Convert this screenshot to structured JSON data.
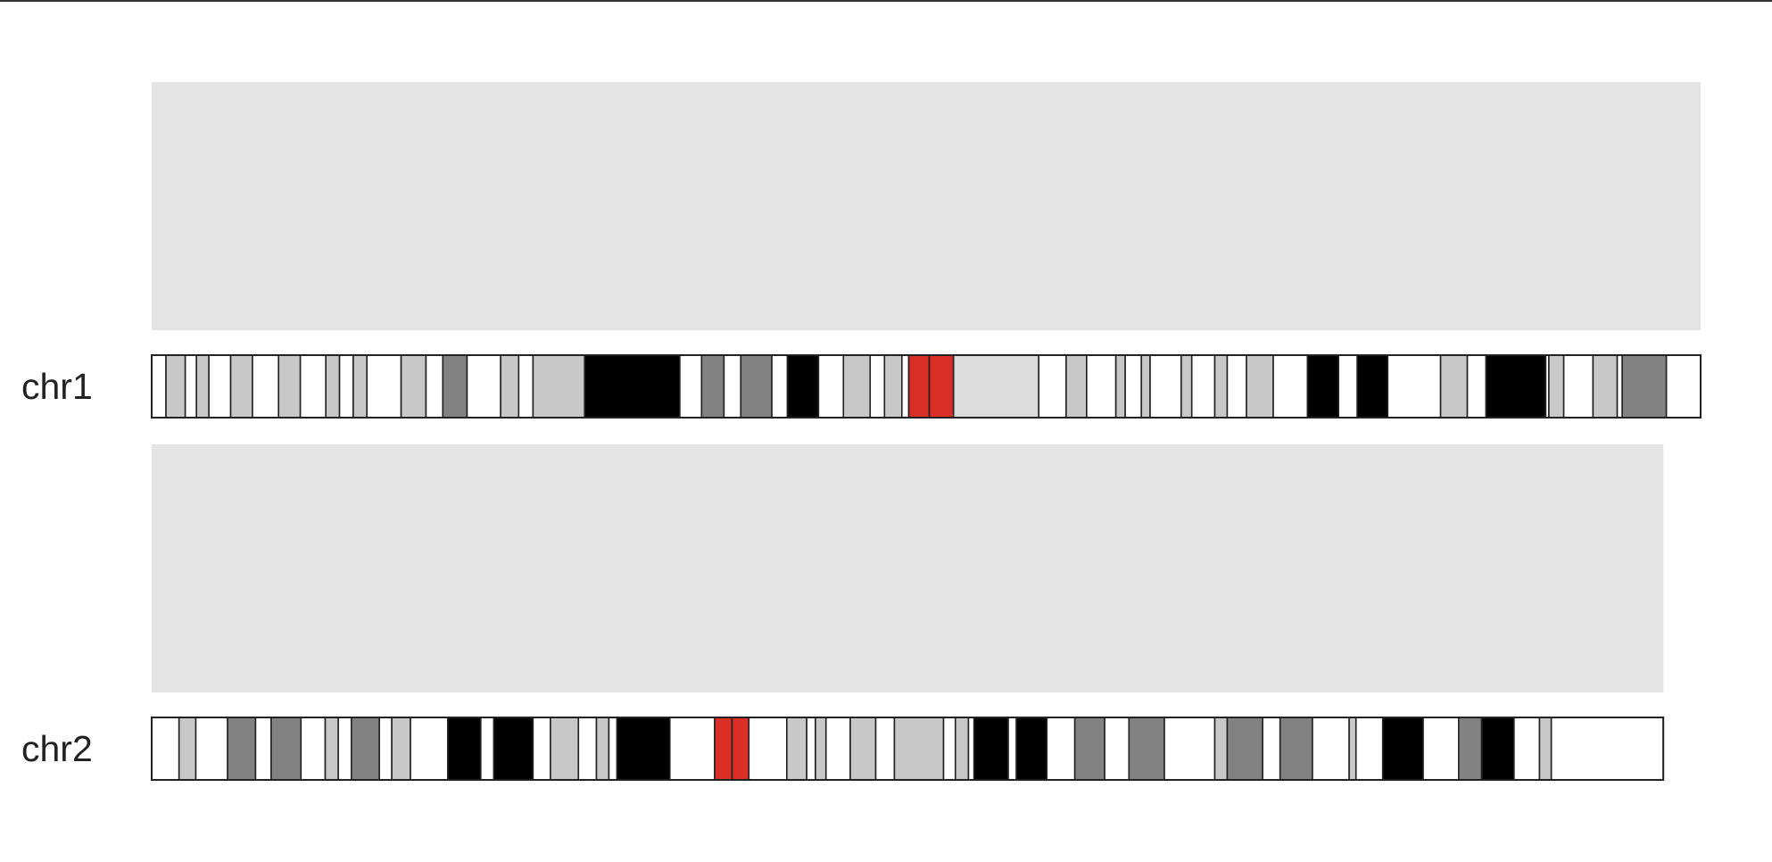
{
  "colors": {
    "panel": "#e4e4e4",
    "outline": "#222222",
    "gneg": "#ffffff",
    "gpos25": "#c8c8c8",
    "gpos50": "#c8c8c8",
    "gpos75": "#828282",
    "gpos100": "#000000",
    "acen": "#d92f27",
    "gvar": "#dcdcdc"
  },
  "chart_data": {
    "type": "ideogram",
    "chromosomes": [
      {
        "name": "chr1",
        "length": 249.0,
        "bands": [
          {
            "start": 0.0,
            "end": 2.3,
            "stain": "gneg"
          },
          {
            "start": 2.3,
            "end": 5.4,
            "stain": "gpos25"
          },
          {
            "start": 5.4,
            "end": 7.2,
            "stain": "gneg"
          },
          {
            "start": 7.2,
            "end": 9.2,
            "stain": "gpos25"
          },
          {
            "start": 9.2,
            "end": 12.7,
            "stain": "gneg"
          },
          {
            "start": 12.7,
            "end": 16.2,
            "stain": "gpos50"
          },
          {
            "start": 16.2,
            "end": 20.4,
            "stain": "gneg"
          },
          {
            "start": 20.4,
            "end": 23.9,
            "stain": "gpos25"
          },
          {
            "start": 23.9,
            "end": 28.0,
            "stain": "gneg"
          },
          {
            "start": 28.0,
            "end": 30.2,
            "stain": "gpos25"
          },
          {
            "start": 30.2,
            "end": 32.4,
            "stain": "gneg"
          },
          {
            "start": 32.4,
            "end": 34.6,
            "stain": "gpos25"
          },
          {
            "start": 34.6,
            "end": 40.1,
            "stain": "gneg"
          },
          {
            "start": 40.1,
            "end": 44.1,
            "stain": "gpos25"
          },
          {
            "start": 44.1,
            "end": 46.8,
            "stain": "gneg"
          },
          {
            "start": 46.8,
            "end": 50.7,
            "stain": "gpos75"
          },
          {
            "start": 50.7,
            "end": 56.1,
            "stain": "gneg"
          },
          {
            "start": 56.1,
            "end": 59.0,
            "stain": "gpos50"
          },
          {
            "start": 59.0,
            "end": 61.3,
            "stain": "gneg"
          },
          {
            "start": 61.3,
            "end": 69.6,
            "stain": "gpos50"
          },
          {
            "start": 69.6,
            "end": 84.9,
            "stain": "gpos100"
          },
          {
            "start": 84.9,
            "end": 88.4,
            "stain": "gneg"
          },
          {
            "start": 88.4,
            "end": 92.0,
            "stain": "gpos75"
          },
          {
            "start": 92.0,
            "end": 94.7,
            "stain": "gneg"
          },
          {
            "start": 94.7,
            "end": 99.7,
            "stain": "gpos75"
          },
          {
            "start": 99.7,
            "end": 102.2,
            "stain": "gneg"
          },
          {
            "start": 102.2,
            "end": 107.2,
            "stain": "gpos100"
          },
          {
            "start": 107.2,
            "end": 111.2,
            "stain": "gneg"
          },
          {
            "start": 111.2,
            "end": 115.5,
            "stain": "gpos50"
          },
          {
            "start": 115.5,
            "end": 117.8,
            "stain": "gneg"
          },
          {
            "start": 117.8,
            "end": 120.6,
            "stain": "gpos50"
          },
          {
            "start": 120.6,
            "end": 121.7,
            "stain": "gneg"
          },
          {
            "start": 121.7,
            "end": 125.0,
            "stain": "acen"
          },
          {
            "start": 125.0,
            "end": 128.9,
            "stain": "acen"
          },
          {
            "start": 128.9,
            "end": 142.6,
            "stain": "gvar"
          },
          {
            "start": 142.6,
            "end": 147.0,
            "stain": "gneg"
          },
          {
            "start": 147.0,
            "end": 150.3,
            "stain": "gpos50"
          },
          {
            "start": 150.3,
            "end": 155.0,
            "stain": "gneg"
          },
          {
            "start": 155.0,
            "end": 156.5,
            "stain": "gpos50"
          },
          {
            "start": 156.5,
            "end": 159.1,
            "stain": "gneg"
          },
          {
            "start": 159.1,
            "end": 160.5,
            "stain": "gpos50"
          },
          {
            "start": 160.5,
            "end": 165.5,
            "stain": "gneg"
          },
          {
            "start": 165.5,
            "end": 167.2,
            "stain": "gpos50"
          },
          {
            "start": 167.2,
            "end": 170.9,
            "stain": "gneg"
          },
          {
            "start": 170.9,
            "end": 172.9,
            "stain": "gpos50"
          },
          {
            "start": 172.9,
            "end": 176.0,
            "stain": "gneg"
          },
          {
            "start": 176.0,
            "end": 180.3,
            "stain": "gpos50"
          },
          {
            "start": 180.3,
            "end": 185.8,
            "stain": "gneg"
          },
          {
            "start": 185.8,
            "end": 190.8,
            "stain": "gpos100"
          },
          {
            "start": 190.8,
            "end": 193.8,
            "stain": "gneg"
          },
          {
            "start": 193.8,
            "end": 198.7,
            "stain": "gpos100"
          },
          {
            "start": 198.7,
            "end": 207.2,
            "stain": "gneg"
          },
          {
            "start": 207.2,
            "end": 211.5,
            "stain": "gpos25"
          },
          {
            "start": 211.5,
            "end": 214.5,
            "stain": "gneg"
          },
          {
            "start": 214.5,
            "end": 224.1,
            "stain": "gpos100"
          },
          {
            "start": 224.1,
            "end": 224.6,
            "stain": "gneg"
          },
          {
            "start": 224.6,
            "end": 227.0,
            "stain": "gpos50"
          },
          {
            "start": 227.0,
            "end": 231.7,
            "stain": "gneg"
          },
          {
            "start": 231.7,
            "end": 235.6,
            "stain": "gpos25"
          },
          {
            "start": 235.6,
            "end": 236.4,
            "stain": "gneg"
          },
          {
            "start": 236.4,
            "end": 243.5,
            "stain": "gpos75"
          },
          {
            "start": 243.5,
            "end": 249.0,
            "stain": "gneg"
          }
        ]
      },
      {
        "name": "chr2",
        "length": 243.0,
        "bands": [
          {
            "start": 0.0,
            "end": 4.4,
            "stain": "gneg"
          },
          {
            "start": 4.4,
            "end": 7.1,
            "stain": "gpos50"
          },
          {
            "start": 7.1,
            "end": 12.2,
            "stain": "gneg"
          },
          {
            "start": 12.2,
            "end": 16.7,
            "stain": "gpos75"
          },
          {
            "start": 16.7,
            "end": 19.2,
            "stain": "gneg"
          },
          {
            "start": 19.2,
            "end": 24.0,
            "stain": "gpos75"
          },
          {
            "start": 24.0,
            "end": 27.9,
            "stain": "gneg"
          },
          {
            "start": 27.9,
            "end": 30.0,
            "stain": "gpos25"
          },
          {
            "start": 30.0,
            "end": 32.1,
            "stain": "gneg"
          },
          {
            "start": 32.1,
            "end": 36.6,
            "stain": "gpos75"
          },
          {
            "start": 36.6,
            "end": 38.6,
            "stain": "gneg"
          },
          {
            "start": 38.6,
            "end": 41.6,
            "stain": "gpos50"
          },
          {
            "start": 41.6,
            "end": 47.6,
            "stain": "gneg"
          },
          {
            "start": 47.6,
            "end": 52.9,
            "stain": "gpos100"
          },
          {
            "start": 52.9,
            "end": 55.0,
            "stain": "gneg"
          },
          {
            "start": 55.0,
            "end": 61.3,
            "stain": "gpos100"
          },
          {
            "start": 61.3,
            "end": 64.1,
            "stain": "gneg"
          },
          {
            "start": 64.1,
            "end": 68.6,
            "stain": "gpos50"
          },
          {
            "start": 68.6,
            "end": 71.5,
            "stain": "gneg"
          },
          {
            "start": 71.5,
            "end": 73.5,
            "stain": "gpos25"
          },
          {
            "start": 73.5,
            "end": 74.8,
            "stain": "gneg"
          },
          {
            "start": 74.8,
            "end": 83.3,
            "stain": "gpos100"
          },
          {
            "start": 83.3,
            "end": 90.5,
            "stain": "gneg"
          },
          {
            "start": 90.5,
            "end": 93.3,
            "stain": "acen"
          },
          {
            "start": 93.3,
            "end": 96.0,
            "stain": "acen"
          },
          {
            "start": 96.0,
            "end": 102.1,
            "stain": "gneg"
          },
          {
            "start": 102.1,
            "end": 105.3,
            "stain": "gpos50"
          },
          {
            "start": 105.3,
            "end": 106.7,
            "stain": "gneg"
          },
          {
            "start": 106.7,
            "end": 108.4,
            "stain": "gpos25"
          },
          {
            "start": 108.4,
            "end": 112.3,
            "stain": "gneg"
          },
          {
            "start": 112.3,
            "end": 116.4,
            "stain": "gpos50"
          },
          {
            "start": 116.4,
            "end": 119.4,
            "stain": "gneg"
          },
          {
            "start": 119.4,
            "end": 127.3,
            "stain": "gpos50"
          },
          {
            "start": 127.3,
            "end": 129.2,
            "stain": "gneg"
          },
          {
            "start": 129.2,
            "end": 131.3,
            "stain": "gpos50"
          },
          {
            "start": 131.3,
            "end": 132.2,
            "stain": "gneg"
          },
          {
            "start": 132.2,
            "end": 137.7,
            "stain": "gpos100"
          },
          {
            "start": 137.7,
            "end": 139.0,
            "stain": "gneg"
          },
          {
            "start": 139.0,
            "end": 143.9,
            "stain": "gpos100"
          },
          {
            "start": 143.9,
            "end": 148.4,
            "stain": "gneg"
          },
          {
            "start": 148.4,
            "end": 153.2,
            "stain": "gpos75"
          },
          {
            "start": 153.2,
            "end": 157.1,
            "stain": "gneg"
          },
          {
            "start": 157.1,
            "end": 162.8,
            "stain": "gpos75"
          },
          {
            "start": 162.8,
            "end": 170.9,
            "stain": "gneg"
          },
          {
            "start": 170.9,
            "end": 172.9,
            "stain": "gpos50"
          },
          {
            "start": 172.9,
            "end": 178.6,
            "stain": "gpos75"
          },
          {
            "start": 178.6,
            "end": 181.4,
            "stain": "gneg"
          },
          {
            "start": 181.4,
            "end": 186.6,
            "stain": "gpos75"
          },
          {
            "start": 186.6,
            "end": 192.5,
            "stain": "gneg"
          },
          {
            "start": 192.5,
            "end": 193.6,
            "stain": "gpos50"
          },
          {
            "start": 193.6,
            "end": 197.9,
            "stain": "gneg"
          },
          {
            "start": 197.9,
            "end": 204.4,
            "stain": "gpos100"
          },
          {
            "start": 204.4,
            "end": 210.1,
            "stain": "gneg"
          },
          {
            "start": 210.1,
            "end": 213.8,
            "stain": "gpos75"
          },
          {
            "start": 213.8,
            "end": 219.0,
            "stain": "gpos100"
          },
          {
            "start": 219.0,
            "end": 223.1,
            "stain": "gneg"
          },
          {
            "start": 223.1,
            "end": 225.0,
            "stain": "gpos50"
          },
          {
            "start": 225.0,
            "end": 243.0,
            "stain": "gneg"
          }
        ]
      }
    ]
  }
}
